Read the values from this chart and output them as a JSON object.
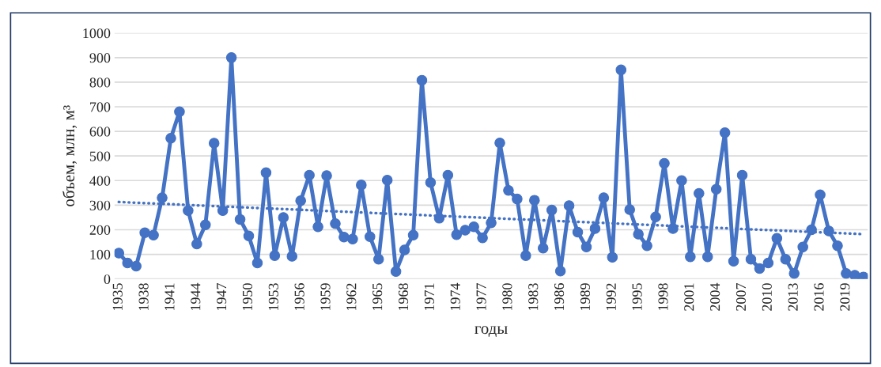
{
  "chart_data": {
    "type": "line",
    "xlabel": "годы",
    "ylabel": "объем, млн, м³",
    "x": [
      1935,
      1936,
      1937,
      1938,
      1939,
      1940,
      1941,
      1942,
      1943,
      1944,
      1945,
      1946,
      1947,
      1948,
      1949,
      1950,
      1951,
      1952,
      1953,
      1954,
      1955,
      1956,
      1957,
      1958,
      1959,
      1960,
      1961,
      1962,
      1963,
      1964,
      1965,
      1966,
      1967,
      1968,
      1969,
      1970,
      1971,
      1972,
      1973,
      1974,
      1975,
      1976,
      1977,
      1978,
      1979,
      1980,
      1981,
      1982,
      1983,
      1984,
      1985,
      1986,
      1987,
      1988,
      1989,
      1990,
      1991,
      1992,
      1993,
      1994,
      1995,
      1996,
      1997,
      1998,
      1999,
      2000,
      2001,
      2002,
      2003,
      2004,
      2005,
      2006,
      2007,
      2008,
      2009,
      2010,
      2011,
      2012,
      2013,
      2014,
      2015,
      2016,
      2017,
      2018,
      2019,
      2020,
      2021
    ],
    "series": [
      {
        "color": "#4472c4",
        "marker": "circle",
        "line_style": "solid",
        "values": [
          105,
          65,
          52,
          188,
          178,
          330,
          572,
          680,
          278,
          142,
          220,
          552,
          278,
          900,
          242,
          175,
          65,
          432,
          95,
          250,
          92,
          318,
          422,
          212,
          420,
          225,
          170,
          162,
          382,
          172,
          80,
          402,
          30,
          118,
          178,
          808,
          392,
          247,
          422,
          180,
          198,
          212,
          167,
          228,
          553,
          360,
          325,
          95,
          320,
          125,
          280,
          32,
          298,
          190,
          130,
          205,
          330,
          88,
          850,
          282,
          182,
          135,
          252,
          470,
          205,
          400,
          90,
          348,
          90,
          365,
          595,
          72,
          422,
          80,
          42,
          65,
          165,
          80,
          22,
          130,
          200,
          342,
          195,
          135,
          22,
          15,
          8
        ]
      },
      {
        "type": "line",
        "color": "#4472c4",
        "marker": "none",
        "line_style": "dotted",
        "x": [
          1935,
          2021
        ],
        "values": [
          313,
          182
        ]
      }
    ],
    "xlim": [
      1934.5,
      2021.5
    ],
    "xticks": [
      1935,
      1938,
      1941,
      1944,
      1947,
      1950,
      1953,
      1956,
      1959,
      1962,
      1965,
      1968,
      1971,
      1974,
      1977,
      1980,
      1983,
      1986,
      1989,
      1992,
      1995,
      1998,
      2001,
      2004,
      2007,
      2010,
      2013,
      2016,
      2019
    ],
    "ylim": [
      0,
      1000
    ],
    "yticks": [
      0,
      100,
      200,
      300,
      400,
      500,
      600,
      700,
      800,
      900,
      1000
    ],
    "grid": "y",
    "legend": false
  }
}
